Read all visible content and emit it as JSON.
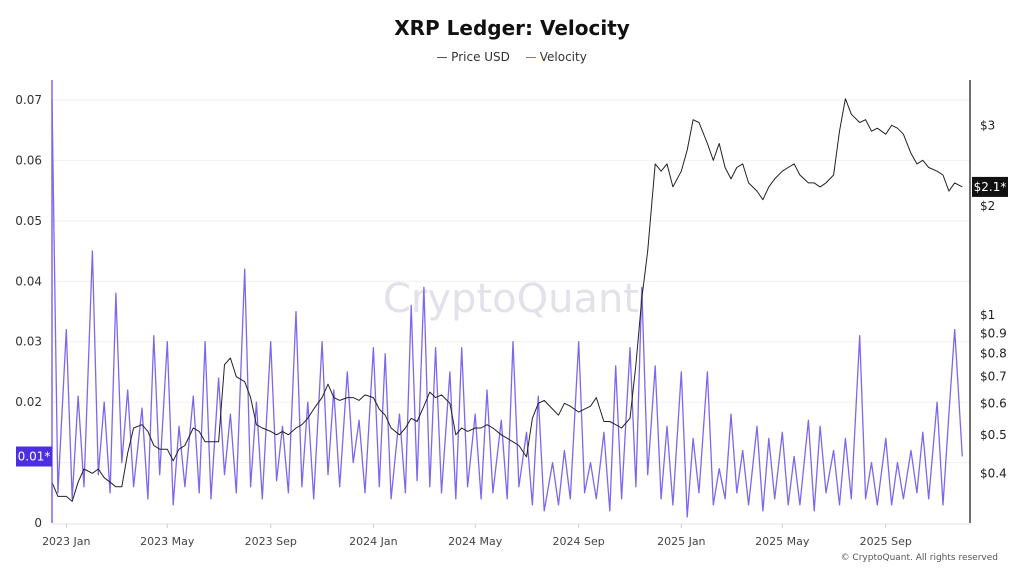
{
  "chart_data": {
    "type": "line",
    "title": "XRP Ledger: Velocity",
    "legend": {
      "position": "top",
      "entries": [
        "Price USD",
        "Velocity"
      ]
    },
    "colors": {
      "Price USD": "#222222",
      "Velocity": "#7b68ee",
      "velocity_badge": "#4b2fe0",
      "price_badge": "#111111"
    },
    "grid": true,
    "x_tick_labels": [
      "2023 Jan",
      "2023 May",
      "2023 Sep",
      "2024 Jan",
      "2024 May",
      "2024 Sep",
      "2025 Jan",
      "2025 May",
      "2025 Sep"
    ],
    "x_ticks": [
      "2023-01-01",
      "2023-05-01",
      "2023-09-01",
      "2024-01-01",
      "2024-05-01",
      "2024-09-01",
      "2025-01-01",
      "2025-05-01",
      "2025-09-01"
    ],
    "xlim": [
      "2022-12-15",
      "2025-12-03"
    ],
    "left_axis": {
      "ticks": [
        0,
        0.01,
        0.02,
        0.03,
        0.04,
        0.05,
        0.06,
        0.07
      ],
      "tick_labels": [
        "0",
        "",
        "0.02",
        "0.03",
        "0.04",
        "0.05",
        "0.06",
        "0.07"
      ],
      "ylim": [
        0,
        0.0733
      ],
      "current_label": "0.01*"
    },
    "right_axis": {
      "scale": "log",
      "ticks": [
        0.4,
        0.5,
        0.6,
        0.7,
        0.8,
        0.9,
        1,
        2,
        3
      ],
      "tick_labels": [
        "$0.4",
        "$0.5",
        "$0.6",
        "$0.7",
        "$0.8",
        "$0.9",
        "$1",
        "$2",
        "$3"
      ],
      "ylim": [
        0.3,
        3.9
      ],
      "current_label": "$2.1*"
    },
    "dates": [
      "2022-12-15",
      "2022-12-22",
      "2023-01-01",
      "2023-01-08",
      "2023-01-15",
      "2023-01-22",
      "2023-02-01",
      "2023-02-08",
      "2023-02-15",
      "2023-02-22",
      "2023-03-01",
      "2023-03-08",
      "2023-03-15",
      "2023-03-22",
      "2023-04-01",
      "2023-04-08",
      "2023-04-15",
      "2023-04-22",
      "2023-05-01",
      "2023-05-08",
      "2023-05-15",
      "2023-05-22",
      "2023-06-01",
      "2023-06-08",
      "2023-06-15",
      "2023-06-22",
      "2023-07-01",
      "2023-07-08",
      "2023-07-15",
      "2023-07-22",
      "2023-08-01",
      "2023-08-08",
      "2023-08-15",
      "2023-08-22",
      "2023-09-01",
      "2023-09-08",
      "2023-09-15",
      "2023-09-22",
      "2023-10-01",
      "2023-10-08",
      "2023-10-15",
      "2023-10-22",
      "2023-11-01",
      "2023-11-08",
      "2023-11-15",
      "2023-11-22",
      "2023-12-01",
      "2023-12-08",
      "2023-12-15",
      "2023-12-22",
      "2024-01-01",
      "2024-01-08",
      "2024-01-15",
      "2024-01-22",
      "2024-02-01",
      "2024-02-08",
      "2024-02-15",
      "2024-02-22",
      "2024-03-01",
      "2024-03-08",
      "2024-03-15",
      "2024-03-22",
      "2024-04-01",
      "2024-04-08",
      "2024-04-15",
      "2024-04-22",
      "2024-05-01",
      "2024-05-08",
      "2024-05-15",
      "2024-05-22",
      "2024-06-01",
      "2024-06-08",
      "2024-06-15",
      "2024-06-22",
      "2024-07-01",
      "2024-07-08",
      "2024-07-15",
      "2024-07-22",
      "2024-08-01",
      "2024-08-08",
      "2024-08-15",
      "2024-08-22",
      "2024-09-01",
      "2024-09-08",
      "2024-09-15",
      "2024-09-22",
      "2024-10-01",
      "2024-10-08",
      "2024-10-15",
      "2024-10-22",
      "2024-11-01",
      "2024-11-08",
      "2024-11-15",
      "2024-11-22",
      "2024-12-01",
      "2024-12-08",
      "2024-12-15",
      "2024-12-22",
      "2025-01-01",
      "2025-01-08",
      "2025-01-15",
      "2025-01-22",
      "2025-02-01",
      "2025-02-08",
      "2025-02-15",
      "2025-02-22",
      "2025-03-01",
      "2025-03-08",
      "2025-03-15",
      "2025-03-22",
      "2025-04-01",
      "2025-04-08",
      "2025-04-15",
      "2025-04-22",
      "2025-05-01",
      "2025-05-08",
      "2025-05-15",
      "2025-05-22",
      "2025-06-01",
      "2025-06-08",
      "2025-06-15",
      "2025-06-22",
      "2025-07-01",
      "2025-07-08",
      "2025-07-15",
      "2025-07-22",
      "2025-08-01",
      "2025-08-08",
      "2025-08-15",
      "2025-08-22",
      "2025-09-01",
      "2025-09-08",
      "2025-09-15",
      "2025-09-22",
      "2025-10-01",
      "2025-10-08",
      "2025-10-15",
      "2025-10-22",
      "2025-11-01",
      "2025-11-08",
      "2025-11-15",
      "2025-11-22",
      "2025-12-01"
    ],
    "series": [
      {
        "name": "Price USD",
        "axis": "right",
        "values": [
          0.38,
          0.35,
          0.35,
          0.34,
          0.38,
          0.41,
          0.4,
          0.41,
          0.39,
          0.38,
          0.37,
          0.37,
          0.45,
          0.52,
          0.53,
          0.51,
          0.47,
          0.46,
          0.46,
          0.43,
          0.46,
          0.47,
          0.52,
          0.51,
          0.48,
          0.48,
          0.48,
          0.75,
          0.78,
          0.7,
          0.68,
          0.62,
          0.53,
          0.52,
          0.51,
          0.5,
          0.51,
          0.5,
          0.52,
          0.53,
          0.55,
          0.58,
          0.62,
          0.67,
          0.62,
          0.61,
          0.62,
          0.62,
          0.61,
          0.63,
          0.62,
          0.58,
          0.56,
          0.52,
          0.5,
          0.52,
          0.55,
          0.54,
          0.59,
          0.64,
          0.62,
          0.63,
          0.6,
          0.5,
          0.52,
          0.51,
          0.52,
          0.52,
          0.53,
          0.52,
          0.5,
          0.49,
          0.48,
          0.47,
          0.44,
          0.55,
          0.6,
          0.61,
          0.58,
          0.56,
          0.6,
          0.59,
          0.57,
          0.58,
          0.59,
          0.62,
          0.54,
          0.54,
          0.53,
          0.52,
          0.55,
          0.75,
          1.1,
          1.45,
          2.4,
          2.3,
          2.4,
          2.1,
          2.3,
          2.6,
          3.1,
          3.05,
          2.7,
          2.45,
          2.7,
          2.35,
          2.2,
          2.35,
          2.4,
          2.15,
          2.05,
          1.95,
          2.1,
          2.2,
          2.3,
          2.35,
          2.4,
          2.25,
          2.15,
          2.15,
          2.1,
          2.15,
          2.25,
          2.9,
          3.5,
          3.2,
          3.05,
          3.1,
          2.9,
          2.95,
          2.85,
          3.0,
          2.95,
          2.85,
          2.55,
          2.4,
          2.45,
          2.35,
          2.3,
          2.25,
          2.05,
          2.15,
          2.1
        ]
      },
      {
        "name": "Velocity",
        "axis": "left",
        "values": [
          0.07,
          0.005,
          0.032,
          0.004,
          0.021,
          0.006,
          0.045,
          0.008,
          0.02,
          0.005,
          0.038,
          0.01,
          0.022,
          0.006,
          0.019,
          0.004,
          0.031,
          0.008,
          0.03,
          0.003,
          0.016,
          0.006,
          0.021,
          0.005,
          0.03,
          0.004,
          0.024,
          0.008,
          0.018,
          0.005,
          0.042,
          0.006,
          0.02,
          0.004,
          0.03,
          0.007,
          0.016,
          0.005,
          0.035,
          0.006,
          0.02,
          0.004,
          0.03,
          0.008,
          0.022,
          0.006,
          0.025,
          0.01,
          0.017,
          0.005,
          0.029,
          0.006,
          0.028,
          0.004,
          0.018,
          0.005,
          0.036,
          0.007,
          0.039,
          0.006,
          0.029,
          0.005,
          0.025,
          0.004,
          0.029,
          0.006,
          0.018,
          0.004,
          0.022,
          0.005,
          0.017,
          0.004,
          0.03,
          0.006,
          0.015,
          0.003,
          0.021,
          0.002,
          0.01,
          0.003,
          0.012,
          0.004,
          0.03,
          0.005,
          0.01,
          0.004,
          0.015,
          0.002,
          0.026,
          0.004,
          0.029,
          0.006,
          0.039,
          0.008,
          0.026,
          0.004,
          0.016,
          0.003,
          0.025,
          0.001,
          0.014,
          0.005,
          0.025,
          0.003,
          0.009,
          0.004,
          0.018,
          0.005,
          0.012,
          0.003,
          0.016,
          0.002,
          0.014,
          0.004,
          0.015,
          0.003,
          0.011,
          0.003,
          0.017,
          0.002,
          0.016,
          0.005,
          0.012,
          0.003,
          0.014,
          0.004,
          0.031,
          0.004,
          0.01,
          0.003,
          0.014,
          0.003,
          0.01,
          0.004,
          0.012,
          0.005,
          0.015,
          0.004,
          0.02,
          0.003,
          0.018,
          0.032,
          0.011
        ]
      }
    ]
  },
  "watermark": "CryptoQuant",
  "copyright": "© CryptoQuant. All rights reserved"
}
